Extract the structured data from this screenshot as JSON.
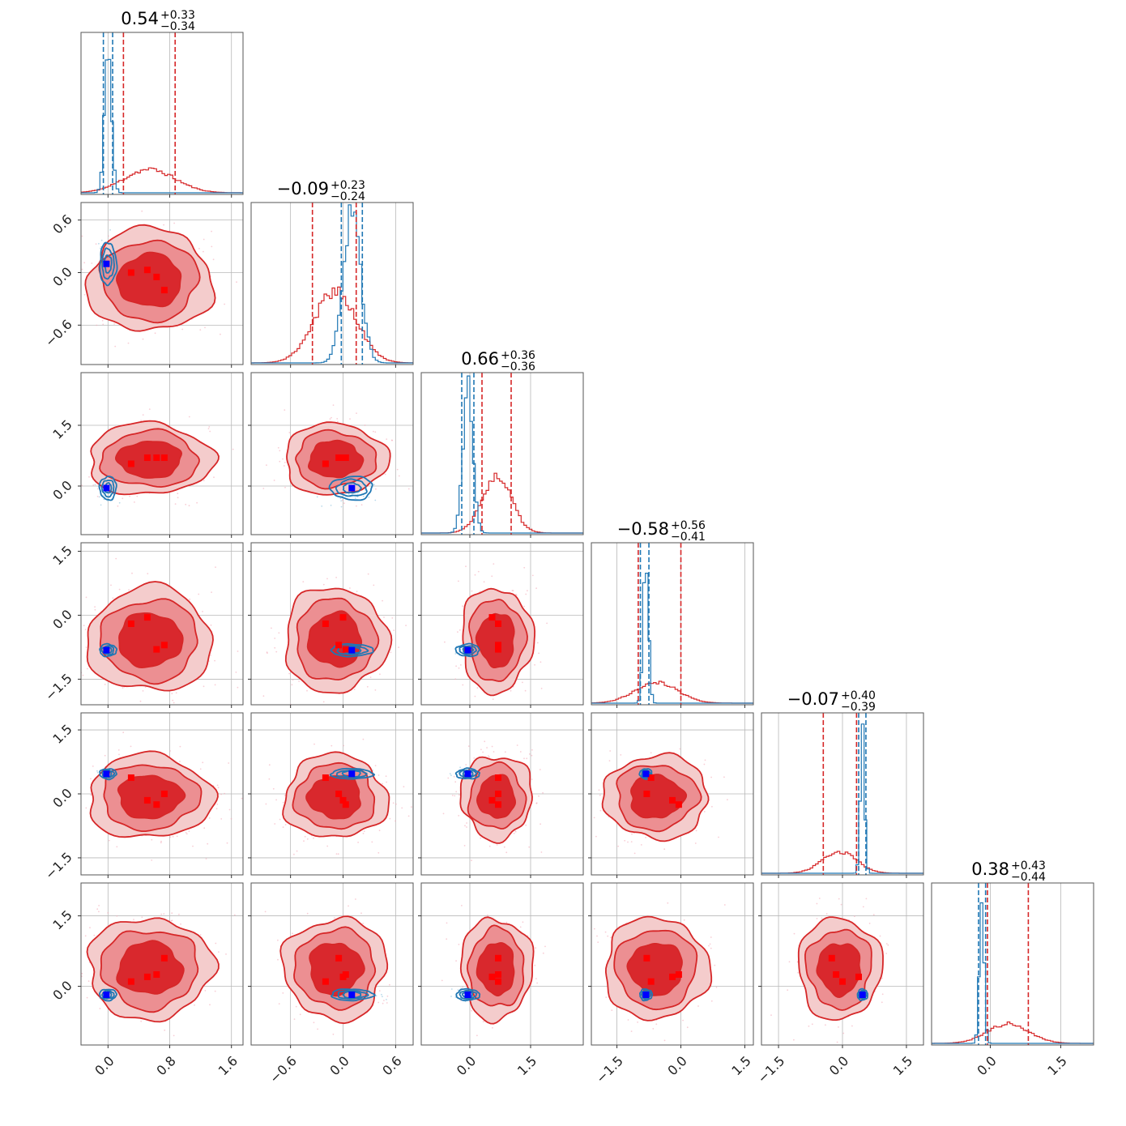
{
  "colors": {
    "posterior_a": "#d62728",
    "posterior_a_fill_outer": "#f4cccc",
    "posterior_a_fill_mid": "#ec8f92",
    "posterior_a_fill_inner": "#d9282d",
    "posterior_b": "#1f77b4",
    "truth_marker_a": "#ff0000",
    "truth_marker_b": "#0000ff",
    "grid": "#b8b8b8"
  },
  "chart_data": {
    "type": "corner",
    "grid": true,
    "params": [
      {
        "range": [
          -0.35,
          1.75
        ],
        "ticks": [
          0.0,
          0.8,
          1.6
        ],
        "tick_labels": [
          "0.0",
          "0.8",
          "1.6"
        ],
        "title": {
          "median": "0.54",
          "plus": "+0.33",
          "minus": "−0.34"
        },
        "a": {
          "mean": 0.54,
          "sd": 0.33,
          "quantiles": [
            0.2,
            0.87
          ]
        },
        "b": {
          "mean": 0.0,
          "sd": 0.045,
          "quantiles": [
            -0.06,
            0.06
          ]
        },
        "markers_a": [
          0.3,
          0.51,
          0.63,
          0.73
        ],
        "marker_b": -0.02
      },
      {
        "range": [
          -1.05,
          0.8
        ],
        "ticks": [
          -0.6,
          0.0,
          0.6
        ],
        "tick_labels": [
          "−0.6",
          "0.0",
          "0.6"
        ],
        "title": {
          "median": "−0.09",
          "plus": "+0.23",
          "minus": "−0.24"
        },
        "a": {
          "mean": -0.09,
          "sd": 0.24,
          "quantiles": [
            -0.35,
            0.15
          ]
        },
        "b": {
          "mean": 0.1,
          "sd": 0.1,
          "quantiles": [
            -0.02,
            0.22
          ]
        },
        "markers_a": [
          -0.2,
          0.0,
          0.03,
          -0.05
        ],
        "marker_b": 0.1
      },
      {
        "range": [
          -1.2,
          2.8
        ],
        "ticks": [
          0.0,
          1.5
        ],
        "tick_labels": [
          "0.0",
          "1.5"
        ],
        "title": {
          "median": "0.66",
          "plus": "+0.36",
          "minus": "−0.36"
        },
        "a": {
          "mean": 0.66,
          "sd": 0.36,
          "quantiles": [
            0.3,
            1.02
          ]
        },
        "b": {
          "mean": -0.05,
          "sd": 0.12,
          "quantiles": [
            -0.2,
            0.1
          ]
        },
        "markers_a": [
          0.7,
          0.55,
          0.7,
          0.7
        ],
        "marker_b": -0.05
      },
      {
        "range": [
          -2.1,
          1.7
        ],
        "ticks": [
          -1.5,
          0.0,
          1.5
        ],
        "tick_labels": [
          "−1.5",
          "0.0",
          "1.5"
        ],
        "title": {
          "median": "−0.58",
          "plus": "+0.56",
          "minus": "−0.41"
        },
        "a": {
          "mean": -0.58,
          "sd": 0.5,
          "quantiles": [
            -1.0,
            0.0
          ]
        },
        "b": {
          "mean": -0.82,
          "sd": 0.06,
          "quantiles": [
            -0.95,
            -0.75
          ]
        },
        "markers_a": [
          -0.7,
          -0.2,
          -0.05,
          -0.8
        ],
        "marker_b": -0.82
      },
      {
        "range": [
          -1.9,
          1.9
        ],
        "ticks": [
          -1.5,
          0.0,
          1.5
        ],
        "tick_labels": [
          "−1.5",
          "0.0",
          "1.5"
        ],
        "title": {
          "median": "−0.07",
          "plus": "+0.40",
          "minus": "−0.39"
        },
        "a": {
          "mean": -0.07,
          "sd": 0.4,
          "quantiles": [
            -0.45,
            0.33
          ]
        },
        "b": {
          "mean": 0.47,
          "sd": 0.05,
          "quantiles": [
            0.38,
            0.55
          ]
        },
        "markers_a": [
          0.0,
          0.38,
          -0.15,
          -0.25
        ],
        "marker_b": 0.47
      },
      {
        "range": [
          -1.25,
          2.2
        ],
        "ticks": [
          0.0,
          1.5
        ],
        "tick_labels": [
          "0.0",
          "1.5"
        ],
        "title": {
          "median": "0.38",
          "plus": "+0.43",
          "minus": "−0.44"
        },
        "a": {
          "mean": 0.38,
          "sd": 0.44,
          "quantiles": [
            -0.06,
            0.81
          ]
        },
        "b": {
          "mean": -0.18,
          "sd": 0.05,
          "quantiles": [
            -0.25,
            -0.1
          ]
        },
        "markers_a": [
          0.6,
          0.1,
          0.2,
          0.25
        ],
        "marker_b": -0.18
      }
    ]
  }
}
